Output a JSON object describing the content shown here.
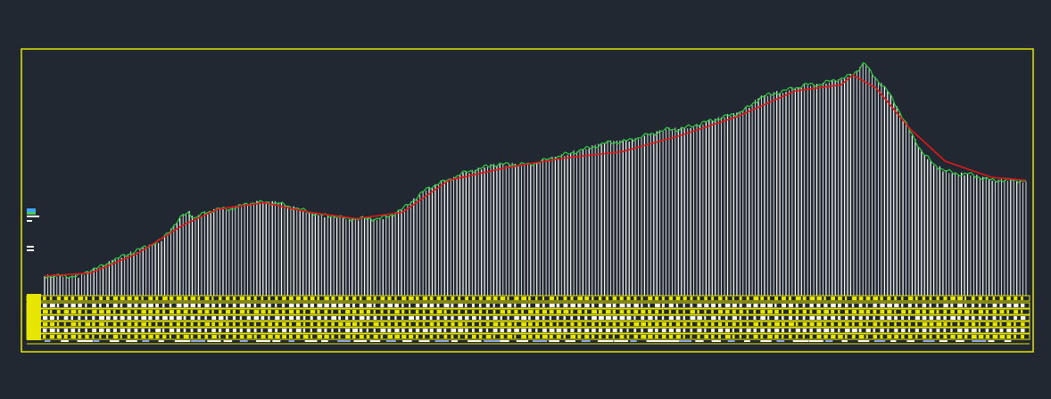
{
  "app": {
    "description_colors": {
      "background": "#222831",
      "frame": "#e6e600",
      "ground_line": "#2ecc40",
      "design_line": "#e01818",
      "stations": "#ffffff",
      "table_fill": "#e6e600",
      "table_marks_blue": "#8aa6ff"
    }
  },
  "profile": {
    "ground_profile": [
      [
        0,
        63
      ],
      [
        3,
        63
      ],
      [
        4,
        61
      ],
      [
        5,
        60
      ],
      [
        6,
        58
      ],
      [
        8,
        55
      ],
      [
        10,
        52
      ],
      [
        11,
        48
      ],
      [
        12,
        44
      ],
      [
        12.5,
        43
      ],
      [
        13,
        45
      ],
      [
        14,
        43
      ],
      [
        15,
        42
      ],
      [
        16,
        42
      ],
      [
        17,
        41
      ],
      [
        18,
        40
      ],
      [
        19,
        40
      ],
      [
        20,
        40
      ],
      [
        21,
        41
      ],
      [
        22,
        42
      ],
      [
        23,
        43
      ],
      [
        24,
        44
      ],
      [
        25,
        44
      ],
      [
        26,
        45
      ],
      [
        27,
        45
      ],
      [
        28,
        45
      ],
      [
        29,
        45
      ],
      [
        30,
        44
      ],
      [
        31,
        42
      ],
      [
        32,
        39
      ],
      [
        33,
        36
      ],
      [
        34,
        34
      ],
      [
        35,
        33
      ],
      [
        36,
        31
      ],
      [
        37,
        30
      ],
      [
        38,
        29
      ],
      [
        39,
        28
      ],
      [
        40,
        28
      ],
      [
        41,
        28
      ],
      [
        42,
        28
      ],
      [
        43,
        27
      ],
      [
        44,
        26
      ],
      [
        45,
        25
      ],
      [
        46,
        24
      ],
      [
        47,
        23
      ],
      [
        48,
        22
      ],
      [
        49,
        21
      ],
      [
        50,
        21
      ],
      [
        51,
        20
      ],
      [
        52,
        19
      ],
      [
        53,
        18
      ],
      [
        54,
        17
      ],
      [
        55,
        17
      ],
      [
        56,
        16
      ],
      [
        57,
        15
      ],
      [
        58,
        14
      ],
      [
        59,
        13
      ],
      [
        60,
        12
      ],
      [
        61,
        10
      ],
      [
        62,
        7
      ],
      [
        63,
        6
      ],
      [
        64,
        5
      ],
      [
        65,
        4
      ],
      [
        66,
        3
      ],
      [
        67,
        3
      ],
      [
        68,
        2
      ],
      [
        69,
        1
      ],
      [
        70,
        0
      ],
      [
        70.5,
        -2
      ],
      [
        71,
        -4
      ],
      [
        71.5,
        -1
      ],
      [
        72,
        1
      ],
      [
        73,
        5
      ],
      [
        74,
        11
      ],
      [
        75,
        18
      ],
      [
        76,
        24
      ],
      [
        77,
        28
      ],
      [
        78,
        30
      ],
      [
        79,
        31
      ],
      [
        80,
        31
      ],
      [
        81,
        32
      ],
      [
        82,
        33
      ],
      [
        83,
        33
      ],
      [
        84,
        33
      ],
      [
        85,
        33
      ]
    ],
    "design_profile": [
      [
        0,
        63
      ],
      [
        4,
        62
      ],
      [
        8,
        56
      ],
      [
        12,
        47
      ],
      [
        15,
        42
      ],
      [
        19,
        40
      ],
      [
        23,
        43
      ],
      [
        27,
        45
      ],
      [
        31,
        43
      ],
      [
        35,
        33
      ],
      [
        40,
        29
      ],
      [
        45,
        26
      ],
      [
        50,
        24
      ],
      [
        55,
        19
      ],
      [
        60,
        13
      ],
      [
        65,
        5
      ],
      [
        69,
        3
      ],
      [
        70,
        0
      ],
      [
        72,
        4
      ],
      [
        75,
        17
      ],
      [
        78,
        27
      ],
      [
        82,
        32
      ],
      [
        85,
        33
      ]
    ],
    "station_count": 320
  },
  "chart_data": {
    "type": "area",
    "series": [
      {
        "values": []
      },
      {
        "values": []
      }
    ],
    "grid": false
  }
}
